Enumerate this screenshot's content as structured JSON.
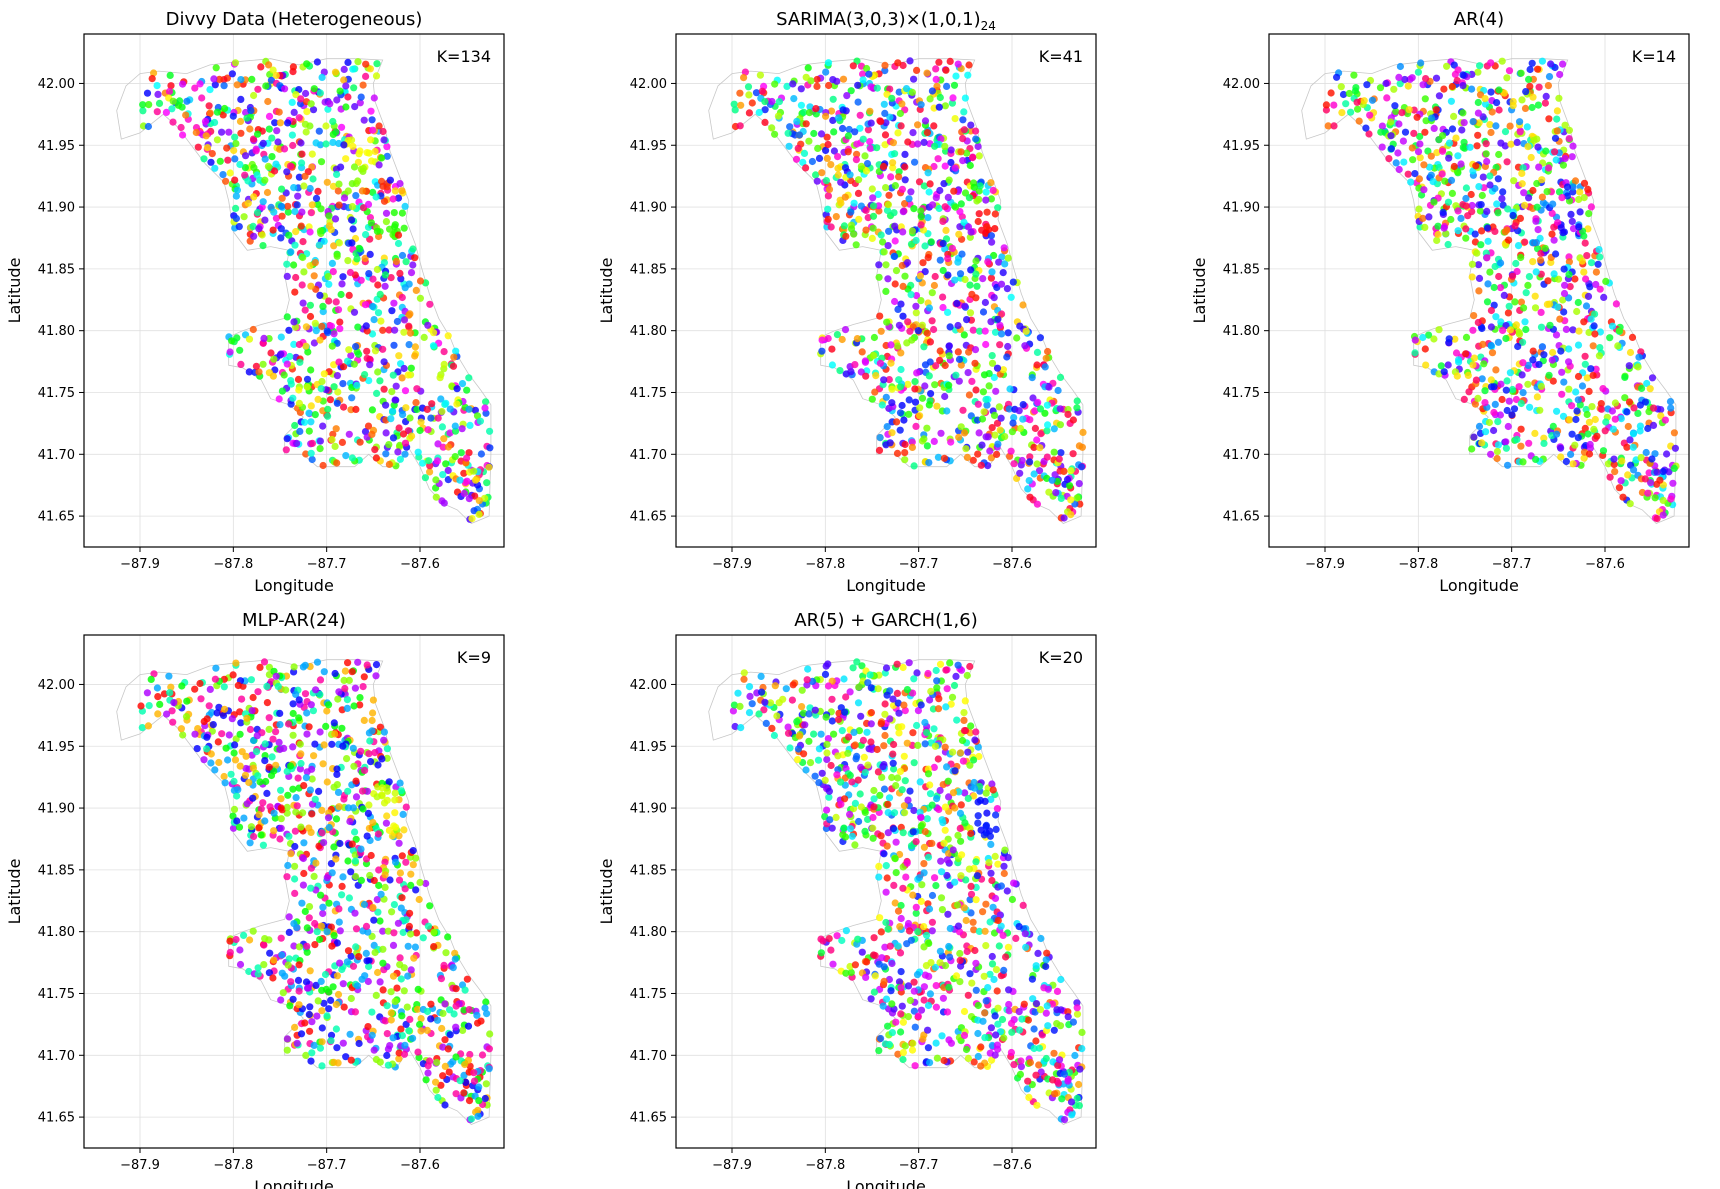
{
  "figure": {
    "background": "#ffffff",
    "axis_color": "#000000",
    "grid_color": "#e0e0e0",
    "outline_color": "#c8c8c8"
  },
  "chart_data": [
    {
      "type": "scatter",
      "title": "Divvy Data (Heterogeneous)",
      "title_math": false,
      "annotation": "K=134",
      "xlabel": "Longitude",
      "ylabel": "Latitude",
      "xlim": [
        -87.96,
        -87.51
      ],
      "ylim": [
        41.625,
        42.04
      ],
      "xticks": [
        -87.9,
        -87.8,
        -87.7,
        -87.6
      ],
      "xtick_labels": [
        "−87.9",
        "−87.8",
        "−87.7",
        "−87.6"
      ],
      "yticks": [
        41.65,
        41.7,
        41.75,
        41.8,
        41.85,
        41.9,
        41.95,
        42.0
      ],
      "ytick_labels": [
        "41.65",
        "41.70",
        "41.75",
        "41.80",
        "41.85",
        "41.90",
        "41.95",
        "42.00"
      ],
      "grid": true,
      "n_clusters": 134,
      "colormap": "hsv",
      "cluster_hotspots": [
        [
          -87.665,
          41.945,
          0.17
        ],
        [
          -87.63,
          41.885,
          0.3
        ],
        [
          -87.67,
          41.92,
          0.25
        ],
        [
          -87.58,
          41.76,
          0.22
        ]
      ]
    },
    {
      "type": "scatter",
      "title": "SARIMA(3,0,3)×(1,0,1)",
      "title_math": true,
      "title_math_sub": "24",
      "annotation": "K=41",
      "xlabel": "Longitude",
      "ylabel": "Latitude",
      "xlim": [
        -87.96,
        -87.51
      ],
      "ylim": [
        41.625,
        42.04
      ],
      "xticks": [
        -87.9,
        -87.8,
        -87.7,
        -87.6
      ],
      "xtick_labels": [
        "−87.9",
        "−87.8",
        "−87.7",
        "−87.6"
      ],
      "yticks": [
        41.65,
        41.7,
        41.75,
        41.8,
        41.85,
        41.9,
        41.95,
        42.0
      ],
      "ytick_labels": [
        "41.65",
        "41.70",
        "41.75",
        "41.80",
        "41.85",
        "41.90",
        "41.95",
        "42.00"
      ],
      "grid": true,
      "n_clusters": 41,
      "colormap": "hsv",
      "cluster_hotspots": [
        [
          -87.63,
          41.89,
          0.0
        ]
      ]
    },
    {
      "type": "scatter",
      "title": "AR(4)",
      "title_math": false,
      "annotation": "K=14",
      "xlabel": "Longitude",
      "ylabel": "Latitude",
      "xlim": [
        -87.96,
        -87.51
      ],
      "ylim": [
        41.625,
        42.04
      ],
      "xticks": [
        -87.9,
        -87.8,
        -87.7,
        -87.6
      ],
      "xtick_labels": [
        "−87.9",
        "−87.8",
        "−87.7",
        "−87.6"
      ],
      "yticks": [
        41.65,
        41.7,
        41.75,
        41.8,
        41.85,
        41.9,
        41.95,
        42.0
      ],
      "ytick_labels": [
        "41.65",
        "41.70",
        "41.75",
        "41.80",
        "41.85",
        "41.90",
        "41.95",
        "42.00"
      ],
      "grid": true,
      "n_clusters": 14,
      "colormap": "hsv",
      "cluster_hotspots": [
        [
          -87.635,
          41.89,
          0.68
        ]
      ]
    },
    {
      "type": "scatter",
      "title": "MLP-AR(24)",
      "title_math": false,
      "annotation": "K=9",
      "xlabel": "Longitude",
      "ylabel": "Latitude",
      "xlim": [
        -87.96,
        -87.51
      ],
      "ylim": [
        41.625,
        42.04
      ],
      "xticks": [
        -87.9,
        -87.8,
        -87.7,
        -87.6
      ],
      "xtick_labels": [
        "−87.9",
        "−87.8",
        "−87.7",
        "−87.6"
      ],
      "yticks": [
        41.65,
        41.7,
        41.75,
        41.8,
        41.85,
        41.9,
        41.95,
        42.0
      ],
      "ytick_labels": [
        "41.65",
        "41.70",
        "41.75",
        "41.80",
        "41.85",
        "41.90",
        "41.95",
        "42.00"
      ],
      "grid": true,
      "n_clusters": 9,
      "colormap": "hsv",
      "cluster_hotspots": [
        [
          -87.64,
          41.905,
          0.2
        ],
        [
          -87.63,
          41.89,
          0.16
        ]
      ]
    },
    {
      "type": "scatter",
      "title": "AR(5) + GARCH(1,6)",
      "title_math": false,
      "annotation": "K=20",
      "xlabel": "Longitude",
      "ylabel": "Latitude",
      "xlim": [
        -87.96,
        -87.51
      ],
      "ylim": [
        41.625,
        42.04
      ],
      "xticks": [
        -87.9,
        -87.8,
        -87.7,
        -87.6
      ],
      "xtick_labels": [
        "−87.9",
        "−87.8",
        "−87.7",
        "−87.6"
      ],
      "yticks": [
        41.65,
        41.7,
        41.75,
        41.8,
        41.85,
        41.9,
        41.95,
        42.0
      ],
      "ytick_labels": [
        "41.65",
        "41.70",
        "41.75",
        "41.80",
        "41.85",
        "41.90",
        "41.95",
        "42.00"
      ],
      "grid": true,
      "n_clusters": 20,
      "colormap": "hsv",
      "cluster_hotspots": [
        [
          -87.635,
          41.895,
          0.66
        ],
        [
          -87.625,
          41.88,
          0.66
        ]
      ]
    }
  ]
}
